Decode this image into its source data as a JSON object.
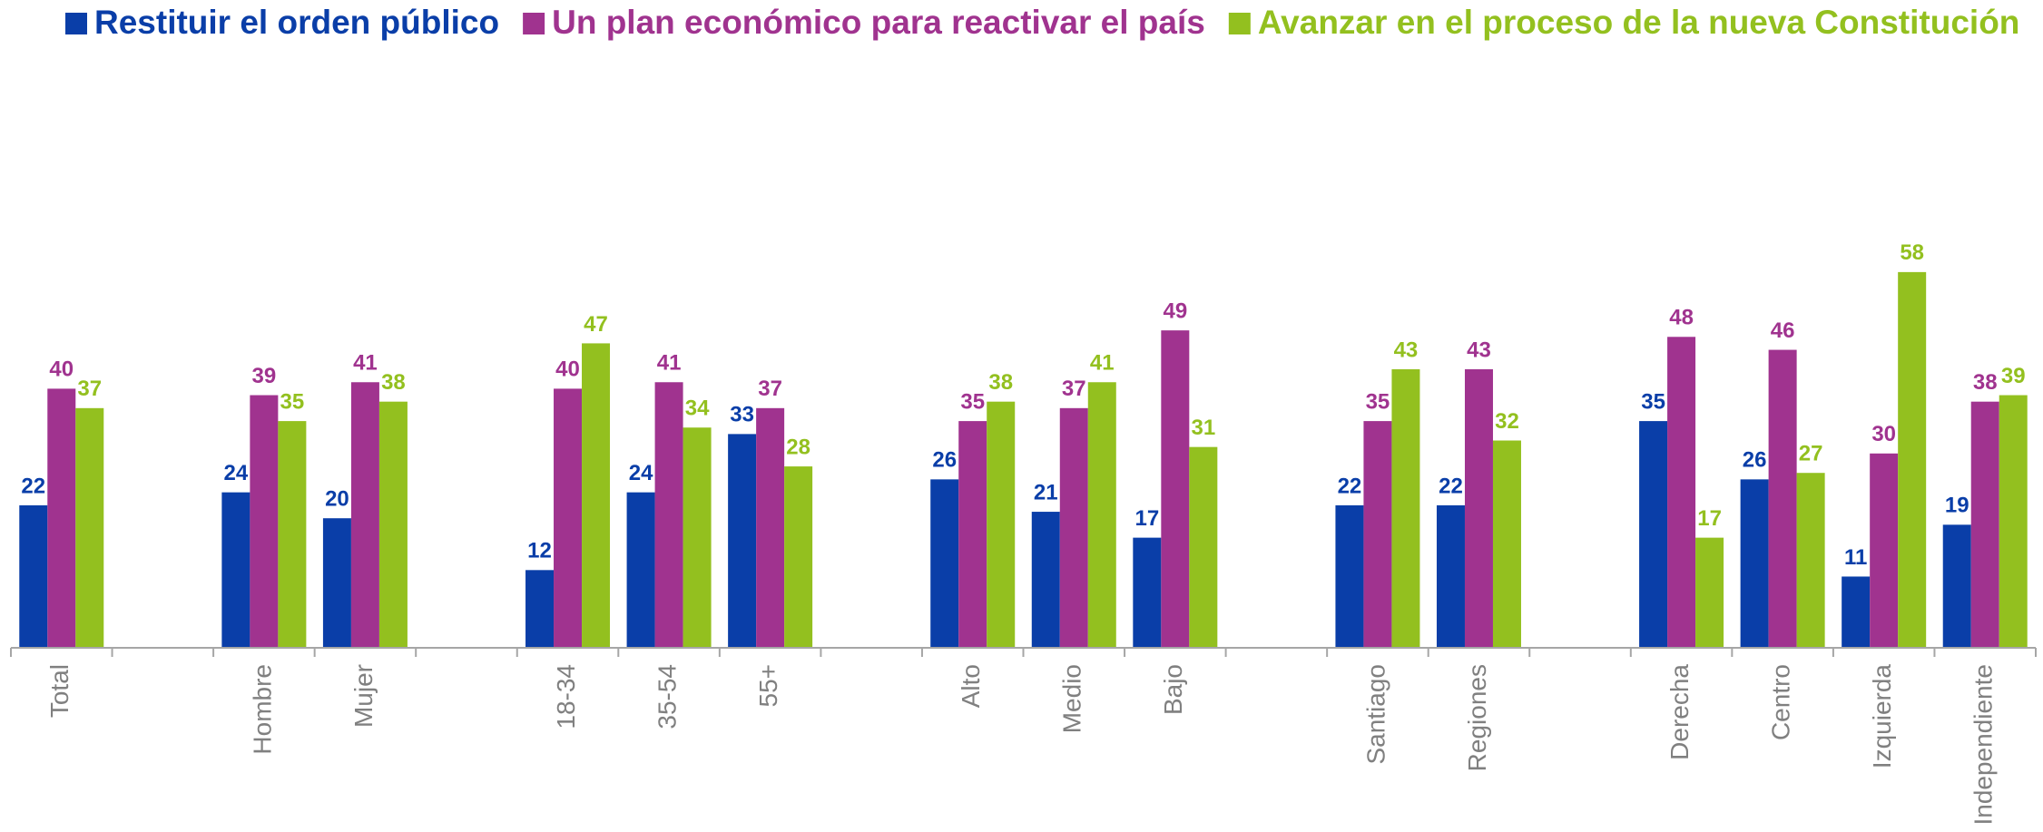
{
  "chart_data": {
    "type": "bar",
    "categories": [
      "Total",
      null,
      "Hombre",
      "Mujer",
      null,
      "18-34",
      "35-54",
      "55+",
      null,
      "Alto",
      "Medio",
      "Bajo",
      null,
      "Santiago",
      "Regiones",
      null,
      "Derecha",
      "Centro",
      "Izquierda",
      "Independiente"
    ],
    "series": [
      {
        "name": "Restituir el orden público",
        "color": "#0a3ea8",
        "values": [
          22,
          null,
          24,
          20,
          null,
          12,
          24,
          33,
          null,
          26,
          21,
          17,
          null,
          22,
          22,
          null,
          35,
          26,
          11,
          19
        ]
      },
      {
        "name": "Un plan económico para reactivar el país",
        "color": "#a0338f",
        "values": [
          40,
          null,
          39,
          41,
          null,
          40,
          41,
          37,
          null,
          35,
          37,
          49,
          null,
          35,
          43,
          null,
          48,
          46,
          30,
          38
        ]
      },
      {
        "name": "Avanzar en el proceso de la nueva Constitución",
        "color": "#93c01f",
        "values": [
          37,
          null,
          35,
          38,
          null,
          47,
          34,
          28,
          null,
          38,
          41,
          31,
          null,
          43,
          32,
          null,
          17,
          27,
          58,
          39
        ]
      }
    ],
    "ylim": [
      0,
      100
    ],
    "legend": "top"
  }
}
